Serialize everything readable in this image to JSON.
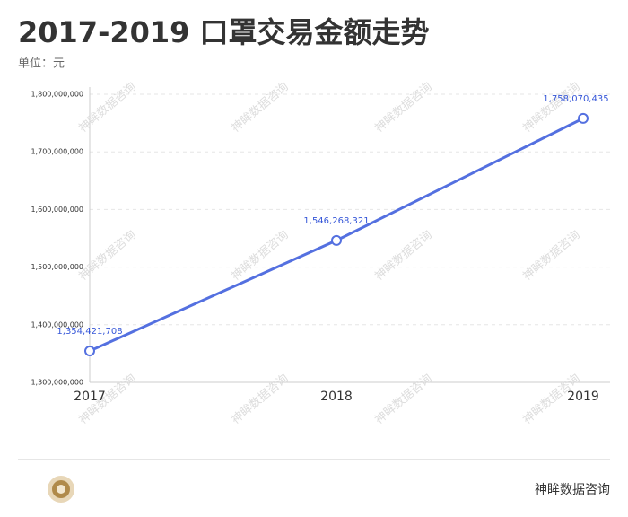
{
  "chart_data": {
    "type": "line",
    "title": "2017-2019 口罩交易金额走势",
    "subtitle": "单位：元",
    "categories": [
      "2017",
      "2018",
      "2019"
    ],
    "values": [
      1354421708,
      1546268321,
      1758070435
    ],
    "value_labels": [
      "1,354,421,708",
      "1,546,268,321",
      "1,758,070,435"
    ],
    "color": "#5470e0",
    "label_color": "#3556d8",
    "ylim": [
      1300000000,
      1800000000
    ],
    "yticks": [
      {
        "value": 1300000000,
        "label": "1,300,000,000"
      },
      {
        "value": 1400000000,
        "label": "1,400,000,000"
      },
      {
        "value": 1500000000,
        "label": "1,500,000,000"
      },
      {
        "value": 1600000000,
        "label": "1,600,000,000"
      },
      {
        "value": 1700000000,
        "label": "1,700,000,000"
      },
      {
        "value": 1800000000,
        "label": "1,800,000,000"
      }
    ],
    "grid": true,
    "source": "神眸数据咨询"
  }
}
